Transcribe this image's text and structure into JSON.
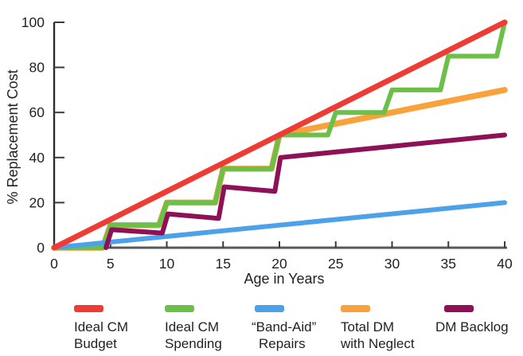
{
  "chart_data": {
    "type": "line",
    "title": "",
    "xlabel": "Age in Years",
    "ylabel": "% Replacement Cost",
    "xlim": [
      0,
      40
    ],
    "ylim": [
      0,
      100
    ],
    "x_ticks": [
      0,
      5,
      10,
      15,
      20,
      25,
      30,
      35,
      40
    ],
    "y_ticks": [
      0,
      20,
      40,
      60,
      80,
      100
    ],
    "grid": false,
    "legend_position": "bottom",
    "series": [
      {
        "name": "Ideal CM Budget",
        "color": "#EE3B34",
        "width": 7,
        "points": [
          [
            0,
            0
          ],
          [
            40,
            100
          ]
        ]
      },
      {
        "name": "Ideal CM Spending",
        "color": "#6CC04A",
        "width": 6,
        "points": [
          [
            0,
            0
          ],
          [
            4.3,
            0
          ],
          [
            5,
            10
          ],
          [
            9.3,
            10
          ],
          [
            10,
            20
          ],
          [
            14.3,
            20
          ],
          [
            15,
            35
          ],
          [
            19.3,
            35
          ],
          [
            20,
            50
          ],
          [
            24.3,
            50
          ],
          [
            25,
            60
          ],
          [
            29.3,
            60
          ],
          [
            30,
            70
          ],
          [
            34.3,
            70
          ],
          [
            35,
            85
          ],
          [
            39.3,
            85
          ],
          [
            40,
            100
          ]
        ]
      },
      {
        "name": "“Band-Aid” Repairs",
        "color": "#4DA1E8",
        "width": 6,
        "points": [
          [
            0,
            0
          ],
          [
            40,
            20
          ]
        ]
      },
      {
        "name": "Total DM with Neglect",
        "color": "#F9A23C",
        "width": 7.5,
        "points": [
          [
            0,
            0
          ],
          [
            4.3,
            0
          ],
          [
            5,
            10
          ],
          [
            9.3,
            10
          ],
          [
            10,
            20
          ],
          [
            14.3,
            20
          ],
          [
            15,
            35
          ],
          [
            19.3,
            35
          ],
          [
            20,
            50
          ],
          [
            40,
            70
          ]
        ]
      },
      {
        "name": "DM Backlog",
        "color": "#8E1056",
        "width": 6,
        "points": [
          [
            4.6,
            0
          ],
          [
            5.1,
            8
          ],
          [
            9.6,
            6.5
          ],
          [
            10.1,
            15
          ],
          [
            14.6,
            13
          ],
          [
            15.1,
            27
          ],
          [
            19.6,
            25
          ],
          [
            20.1,
            40
          ],
          [
            40,
            50
          ]
        ]
      }
    ],
    "draw_order": [
      "Total DM with Neglect",
      "Ideal CM Spending",
      "“Band-Aid” Repairs",
      "DM Backlog",
      "Ideal CM Budget"
    ]
  },
  "legend": {
    "items": [
      {
        "lines": [
          "Ideal CM",
          "Budget"
        ],
        "color": "#EE3B34"
      },
      {
        "lines": [
          "Ideal CM",
          "Spending"
        ],
        "color": "#6CC04A"
      },
      {
        "lines": [
          "“Band-Aid”",
          "Repairs"
        ],
        "color": "#4DA1E8"
      },
      {
        "lines": [
          "Total DM",
          "with Neglect"
        ],
        "color": "#F9A23C"
      },
      {
        "lines": [
          "DM Backlog"
        ],
        "color": "#8E1056"
      }
    ]
  },
  "colors": {
    "text": "#231F20",
    "x_axis": "#58595B",
    "y_axis": "#2D2D2F",
    "tick": "#3B3B3D"
  }
}
